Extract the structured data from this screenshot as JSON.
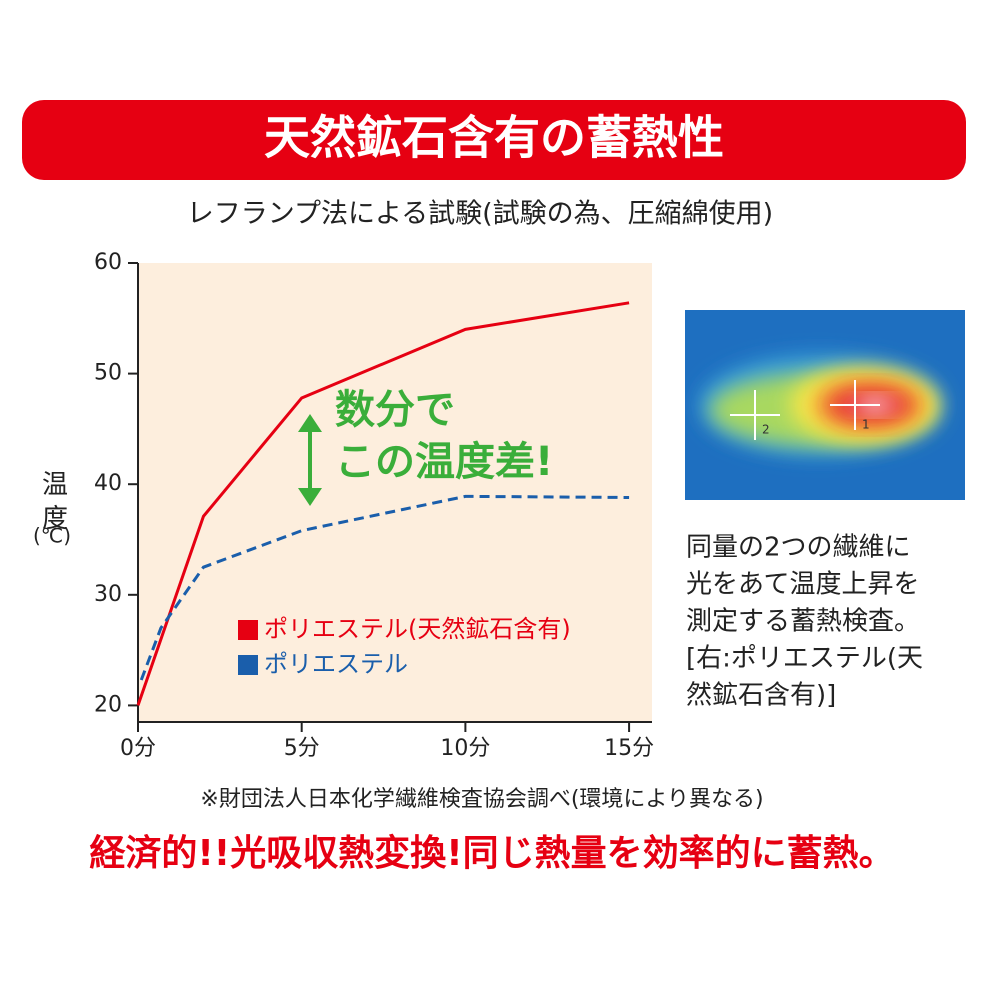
{
  "chart_data": {
    "type": "line",
    "title": "天然鉱石含有の蓄熱性",
    "subtitle": "レフランプ法による試験(試験の為、圧縮綿使用)",
    "y_label": "温度",
    "y_unit": "(℃)",
    "xlim": [
      0,
      15.7
    ],
    "ylim": [
      18.5,
      60
    ],
    "xticks": [
      {
        "value": 0,
        "label": "0分"
      },
      {
        "value": 5,
        "label": "5分"
      },
      {
        "value": 10,
        "label": "10分"
      },
      {
        "value": 15,
        "label": "15分"
      }
    ],
    "yticks": [
      20,
      30,
      40,
      50,
      60
    ],
    "series": [
      {
        "name": "ポリエステル(天然鉱石含有)",
        "color": "#e60012",
        "dash": false,
        "x": [
          0,
          2,
          5,
          10,
          15
        ],
        "values": [
          20,
          37.1,
          47.8,
          54,
          56.4
        ]
      },
      {
        "name": "ポリエステル",
        "color": "#1a5eab",
        "dash": true,
        "x": [
          0.1,
          0.7,
          2,
          5,
          10,
          15
        ],
        "values": [
          22.3,
          27,
          32.5,
          35.8,
          38.9,
          38.8
        ]
      }
    ],
    "annotation": [
      "数分で",
      "この温度差!"
    ],
    "image_labels": [
      "2",
      "1"
    ],
    "caption": [
      "同量の2つの繊維に",
      "光をあて温度上昇を",
      "測定する蓄熱検査。",
      "[右:ポリエステル(天",
      "然鉱石含有)]"
    ],
    "note": "※財団法人日本化学繊維検査協会調べ(環境により異なる)",
    "tagline": "経済的!!光吸収熱変換!同じ熱量を効率的に蓄熱。"
  }
}
